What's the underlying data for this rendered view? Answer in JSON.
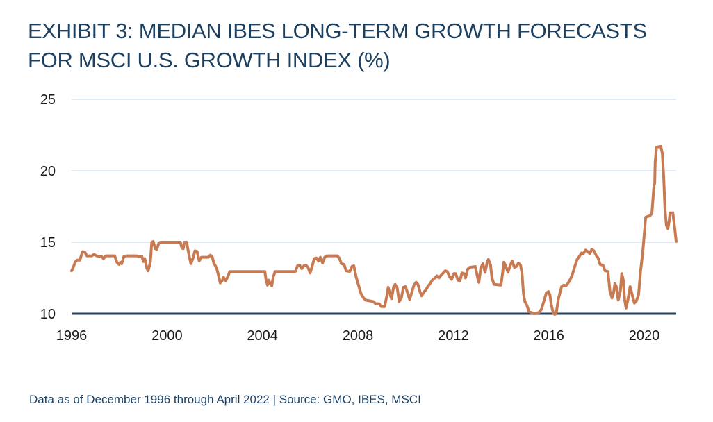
{
  "header": {
    "title_lines": [
      "EXHIBIT 3: MEDIAN IBES LONG-TERM GROWTH FORECASTS",
      "FOR MSCI U.S. GROWTH INDEX (%)"
    ]
  },
  "footer": {
    "text": "Data as of December 1996 through April 2022 | Source: GMO, IBES, MSCI"
  },
  "colors": {
    "title": "#1d4060",
    "axis": "#24425d",
    "gridline": "#d6e4f0",
    "line": "#c87b52",
    "tick_label": "#1a1a1a",
    "background": "#ffffff"
  },
  "chart_data": {
    "type": "line",
    "title": "EXHIBIT 3: MEDIAN IBES LONG-TERM GROWTH FORECASTS FOR MSCI U.S. GROWTH INDEX (%)",
    "xlabel": "",
    "ylabel": "",
    "xlim": [
      1996.92,
      2022.26
    ],
    "ylim": [
      10,
      25
    ],
    "grid": "horizontal",
    "legend": "none",
    "line_color": "#c87b52",
    "y_ticks": [
      10,
      15,
      20,
      25
    ],
    "x_ticks": [
      {
        "label": "1996",
        "t": 1996.92
      },
      {
        "label": "2000",
        "t": 2000.92
      },
      {
        "label": "2004",
        "t": 2004.92
      },
      {
        "label": "2008",
        "t": 2008.92
      },
      {
        "label": "2012",
        "t": 2012.92
      },
      {
        "label": "2016",
        "t": 2016.92
      },
      {
        "label": "2020",
        "t": 2020.92
      }
    ],
    "series": [
      {
        "name": "Median IBES long-term growth forecast for MSCI U.S. Growth Index (%)",
        "x": [
          1996.92,
          1996.98,
          1997.07,
          1997.15,
          1997.27,
          1997.33,
          1997.39,
          1997.48,
          1997.56,
          1997.77,
          1997.86,
          1997.97,
          1998.18,
          1998.26,
          1998.35,
          1998.73,
          1998.82,
          1998.91,
          1998.97,
          1999.02,
          1999.11,
          1999.23,
          1999.64,
          1999.75,
          1999.87,
          1999.93,
          1999.99,
          2000.08,
          2000.13,
          2000.22,
          2000.28,
          2000.34,
          2000.43,
          2000.49,
          2000.57,
          2000.63,
          2001.48,
          2001.54,
          2001.6,
          2001.65,
          2001.74,
          2001.83,
          2001.92,
          2002.01,
          2002.09,
          2002.18,
          2002.27,
          2002.36,
          2002.65,
          2002.74,
          2002.82,
          2002.88,
          2003.0,
          2003.09,
          2003.15,
          2003.23,
          2003.29,
          2003.38,
          2003.47,
          2003.55,
          2005.02,
          2005.07,
          2005.13,
          2005.19,
          2005.25,
          2005.31,
          2005.37,
          2005.45,
          2006.3,
          2006.39,
          2006.48,
          2006.57,
          2006.65,
          2006.74,
          2006.83,
          2006.92,
          2007.0,
          2007.09,
          2007.18,
          2007.27,
          2007.35,
          2007.44,
          2007.53,
          2007.62,
          2008.05,
          2008.14,
          2008.23,
          2008.34,
          2008.43,
          2008.58,
          2008.67,
          2008.75,
          2008.84,
          2008.93,
          2009.05,
          2009.16,
          2009.25,
          2009.57,
          2009.66,
          2009.81,
          2009.9,
          2010.04,
          2010.13,
          2010.19,
          2010.28,
          2010.33,
          2010.42,
          2010.48,
          2010.57,
          2010.65,
          2010.74,
          2010.83,
          2010.92,
          2011.01,
          2011.09,
          2011.18,
          2011.27,
          2011.36,
          2011.44,
          2011.53,
          2011.59,
          2011.68,
          2011.76,
          2011.85,
          2011.94,
          2012.06,
          2012.15,
          2012.23,
          2012.32,
          2012.41,
          2012.5,
          2012.58,
          2012.67,
          2012.76,
          2012.85,
          2012.94,
          2013.02,
          2013.11,
          2013.2,
          2013.28,
          2013.37,
          2013.43,
          2013.52,
          2013.61,
          2013.84,
          2013.93,
          2013.99,
          2014.07,
          2014.16,
          2014.25,
          2014.34,
          2014.39,
          2014.48,
          2014.54,
          2014.63,
          2014.92,
          2014.98,
          2015.04,
          2015.13,
          2015.21,
          2015.3,
          2015.39,
          2015.48,
          2015.56,
          2015.65,
          2015.74,
          2015.8,
          2015.86,
          2015.92,
          2016.0,
          2016.09,
          2016.24,
          2016.41,
          2016.53,
          2016.62,
          2016.73,
          2016.82,
          2016.91,
          2016.97,
          2017.03,
          2017.11,
          2017.17,
          2017.23,
          2017.32,
          2017.41,
          2017.46,
          2017.55,
          2017.64,
          2017.73,
          2017.82,
          2017.91,
          2017.99,
          2018.11,
          2018.2,
          2018.29,
          2018.37,
          2018.46,
          2018.55,
          2018.64,
          2018.72,
          2018.81,
          2018.9,
          2018.99,
          2019.07,
          2019.19,
          2019.28,
          2019.4,
          2019.48,
          2019.57,
          2019.63,
          2019.69,
          2019.75,
          2019.83,
          2019.92,
          2019.98,
          2020.04,
          2020.1,
          2020.16,
          2020.24,
          2020.33,
          2020.42,
          2020.51,
          2020.59,
          2020.68,
          2020.77,
          2020.86,
          2020.92,
          2020.98,
          2021.15,
          2021.24,
          2021.33,
          2021.36,
          2021.38,
          2021.44,
          2021.62,
          2021.68,
          2021.74,
          2021.79,
          2021.85,
          2021.91,
          2021.97,
          2022.0,
          2022.12,
          2022.17,
          2022.23,
          2022.26
        ],
        "values": [
          13.0,
          13.2,
          13.6,
          13.75,
          13.75,
          14.1,
          14.35,
          14.3,
          14.05,
          14.05,
          14.15,
          14.05,
          14.0,
          13.85,
          14.05,
          14.05,
          13.6,
          13.45,
          13.6,
          13.5,
          14.0,
          14.05,
          14.05,
          14.0,
          14.0,
          13.65,
          13.85,
          13.15,
          13.0,
          13.6,
          15.0,
          15.05,
          14.55,
          14.5,
          14.9,
          15.0,
          15.0,
          14.6,
          14.55,
          15.0,
          15.0,
          14.2,
          13.5,
          13.9,
          14.4,
          14.35,
          13.7,
          13.95,
          13.95,
          14.1,
          13.95,
          13.55,
          13.2,
          12.6,
          12.15,
          12.3,
          12.55,
          12.3,
          12.6,
          12.95,
          12.95,
          12.4,
          12.0,
          12.35,
          12.1,
          11.95,
          12.55,
          12.95,
          12.95,
          13.35,
          13.4,
          13.15,
          13.35,
          13.4,
          13.25,
          12.85,
          13.3,
          13.85,
          13.9,
          13.7,
          13.95,
          13.55,
          13.95,
          14.05,
          14.05,
          13.9,
          13.5,
          13.45,
          13.0,
          12.95,
          13.3,
          13.35,
          12.6,
          12.1,
          11.4,
          11.1,
          10.95,
          10.85,
          10.7,
          10.7,
          10.5,
          10.5,
          11.2,
          11.85,
          11.3,
          11.05,
          11.9,
          12.05,
          11.8,
          10.85,
          11.1,
          11.85,
          11.9,
          11.4,
          11.0,
          11.5,
          12.0,
          12.2,
          12.05,
          11.5,
          11.25,
          11.5,
          11.65,
          11.9,
          12.1,
          12.4,
          12.5,
          12.65,
          12.5,
          12.7,
          12.85,
          13.0,
          12.95,
          12.6,
          12.4,
          12.8,
          12.8,
          12.35,
          12.3,
          12.85,
          12.8,
          12.5,
          13.1,
          13.25,
          13.3,
          12.6,
          12.2,
          13.2,
          13.5,
          12.9,
          13.6,
          13.8,
          13.4,
          12.5,
          12.05,
          12.0,
          12.8,
          13.6,
          13.3,
          12.9,
          13.35,
          13.7,
          13.25,
          13.3,
          13.55,
          13.4,
          12.8,
          11.4,
          10.85,
          10.6,
          10.15,
          10.05,
          10.05,
          10.1,
          10.35,
          10.95,
          11.45,
          11.55,
          11.3,
          10.6,
          10.05,
          9.95,
          10.0,
          11.0,
          11.6,
          11.9,
          12.0,
          11.95,
          12.15,
          12.4,
          12.75,
          13.2,
          13.8,
          14.0,
          14.25,
          14.2,
          14.45,
          14.35,
          14.2,
          14.5,
          14.4,
          14.1,
          13.9,
          13.45,
          13.4,
          13.0,
          12.95,
          11.6,
          11.1,
          11.4,
          12.1,
          11.9,
          10.95,
          11.6,
          12.8,
          12.4,
          11.0,
          10.4,
          11.0,
          11.9,
          11.3,
          10.75,
          10.9,
          11.3,
          13.0,
          14.3,
          15.5,
          16.75,
          16.85,
          17.0,
          19.0,
          19.1,
          20.6,
          21.65,
          21.7,
          21.2,
          19.5,
          17.3,
          16.2,
          15.95,
          16.5,
          17.05,
          17.05,
          16.4,
          15.5,
          15.05
        ]
      }
    ]
  }
}
